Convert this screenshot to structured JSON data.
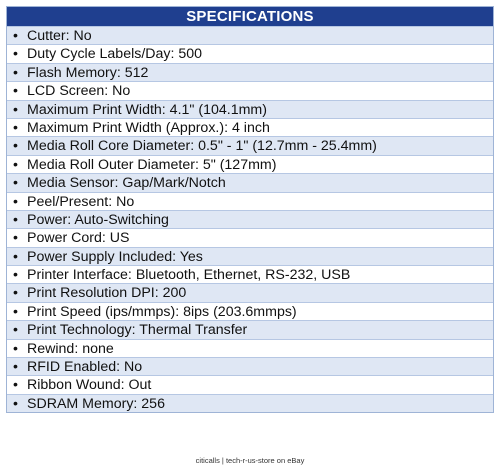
{
  "header": {
    "title": "SPECIFICATIONS"
  },
  "bullet": "•",
  "specs": [
    "Cutter: No",
    "Duty Cycle Labels/Day: 500",
    "Flash Memory: 512",
    "LCD Screen: No",
    "Maximum Print Width: 4.1\" (104.1mm)",
    "Maximum Print Width (Approx.): 4 inch",
    "Media Roll Core Diameter: 0.5\" - 1\" (12.7mm - 25.4mm)",
    "Media Roll Outer Diameter: 5\" (127mm)",
    "Media Sensor: Gap/Mark/Notch",
    "Peel/Present: No",
    "Power: Auto-Switching",
    "Power Cord: US",
    "Power Supply Included: Yes",
    "Printer Interface: Bluetooth, Ethernet, RS-232, USB",
    "Print Resolution DPI: 200",
    "Print Speed (ips/mmps): 8ips (203.6mmps)",
    "Print Technology: Thermal Transfer",
    "Rewind: none",
    "RFID Enabled: No",
    "Ribbon Wound: Out",
    "SDRAM Memory: 256"
  ],
  "footer": {
    "text": "citicalls | tech-r-us-store on eBay"
  },
  "colors": {
    "header_bg": "#1f3f8f",
    "stripe": "#dfe7f4",
    "border": "#b6c7e3"
  }
}
